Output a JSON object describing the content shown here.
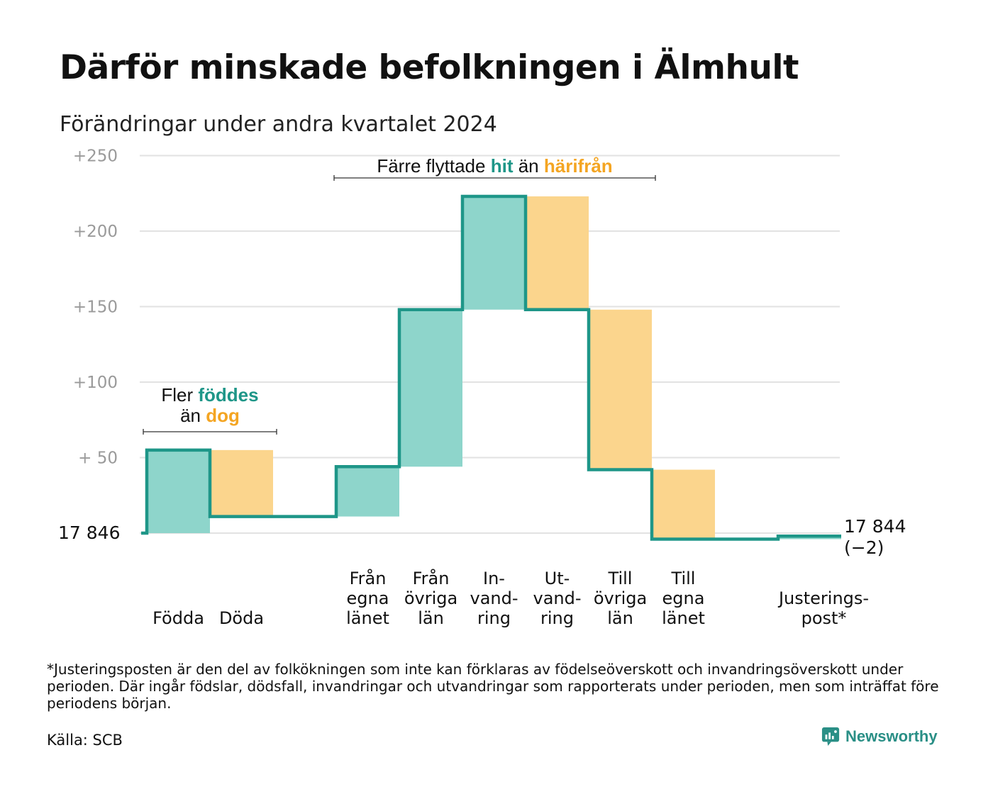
{
  "title": "Därför minskade befolkningen i Älmhult",
  "subtitle": "Förändringar under andra kvartalet 2024",
  "colors": {
    "teal_line": "#1e9688",
    "teal_fill": "#8ed5cb",
    "orange_fill": "#fbd58d",
    "teal_text": "#1e9688",
    "orange_text": "#f4a522",
    "grid": "#e2e2e2",
    "tick": "#9a9a9a"
  },
  "chart_data": {
    "type": "waterfall",
    "baseline_label": "17  846",
    "end_label_line1": "17 844",
    "end_label_line2": "(−2)",
    "y_ticks": [
      {
        "value": 250,
        "label": "+250"
      },
      {
        "value": 200,
        "label": "+200"
      },
      {
        "value": 150,
        "label": "+150"
      },
      {
        "value": 100,
        "label": "+100"
      },
      {
        "value": 50,
        "label": "+  50"
      }
    ],
    "ylim": [
      -5,
      255
    ],
    "steps": [
      {
        "label_lines": [
          "Födda"
        ],
        "start": 0,
        "end": 55,
        "kind": "in"
      },
      {
        "label_lines": [
          "Döda"
        ],
        "start": 55,
        "end": 11,
        "kind": "out"
      },
      {
        "label_lines": [],
        "start": 11,
        "end": 11,
        "kind": "gap"
      },
      {
        "label_lines": [
          "Från",
          "egna",
          "länet"
        ],
        "start": 11,
        "end": 44,
        "kind": "in"
      },
      {
        "label_lines": [
          "Från",
          "övriga",
          "län"
        ],
        "start": 44,
        "end": 148,
        "kind": "in"
      },
      {
        "label_lines": [
          "In-",
          "vand-",
          "ring"
        ],
        "start": 148,
        "end": 223,
        "kind": "in"
      },
      {
        "label_lines": [
          "Ut-",
          "vand-",
          "ring"
        ],
        "start": 223,
        "end": 148,
        "kind": "out"
      },
      {
        "label_lines": [
          "Till",
          "övriga",
          "län"
        ],
        "start": 148,
        "end": 42,
        "kind": "out"
      },
      {
        "label_lines": [
          "Till",
          "egna",
          "länet"
        ],
        "start": 42,
        "end": -4,
        "kind": "out"
      },
      {
        "label_lines": [],
        "start": -4,
        "end": -4,
        "kind": "gap"
      },
      {
        "label_lines": [
          "Justerings-",
          "post*"
        ],
        "start": -4,
        "end": -2,
        "kind": "in"
      }
    ],
    "annotations": [
      {
        "text_parts": [
          {
            "text": "Fler ",
            "color": "dark"
          },
          {
            "text": "föddes",
            "color": "teal"
          }
        ],
        "line2_parts": [
          {
            "text": "än ",
            "color": "dark"
          },
          {
            "text": "dog",
            "color": "orange"
          }
        ],
        "from_step": 0,
        "to_step": 1
      },
      {
        "text_parts": [
          {
            "text": "Färre flyttade ",
            "color": "dark"
          },
          {
            "text": "hit",
            "color": "teal"
          },
          {
            "text": "  än ",
            "color": "dark"
          },
          {
            "text": "härifrån",
            "color": "orange"
          }
        ],
        "from_step": 3,
        "to_step": 8
      }
    ]
  },
  "footnote": "*Justeringsposten är den del av folkökningen som inte kan förklaras av födelseöverskott och invandringsöverskott under perioden. Där ingår födslar, dödsfall, invandringar och utvandringar som rapporterats under perioden, men som inträffat före periodens början.",
  "source": "Källa: SCB",
  "brand": "Newsworthy"
}
